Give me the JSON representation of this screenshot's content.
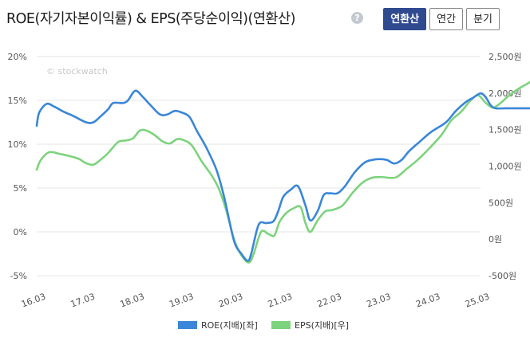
{
  "header": {
    "title": "ROE(자기자본이익률) & EPS(주당순이익)(연환산)",
    "help_icon": "?",
    "buttons": [
      {
        "label": "연환산",
        "active": true
      },
      {
        "label": "연간",
        "active": false
      },
      {
        "label": "분기",
        "active": false
      }
    ]
  },
  "chart_data": {
    "type": "line",
    "watermark": "© stockwatch",
    "x_labels": [
      "16.03",
      "17.03",
      "18.03",
      "19.03",
      "20.03",
      "21.03",
      "22.03",
      "23.03",
      "24.03",
      "25.03"
    ],
    "y_left": {
      "ticks": [
        20,
        15,
        10,
        5,
        0,
        -5
      ],
      "tick_labels": [
        "20%",
        "15%",
        "10%",
        "5%",
        "0%",
        "-5%"
      ],
      "range": [
        -5,
        20
      ]
    },
    "y_right": {
      "ticks": [
        2500,
        2000,
        1500,
        1000,
        500,
        0,
        -500
      ],
      "tick_labels": [
        "2,500원",
        "2,000원",
        "1,500원",
        "1,000원",
        "500원",
        "0원",
        "-500원"
      ],
      "range": [
        -500,
        2500
      ]
    },
    "colors": {
      "roe": "#3a86d8",
      "eps": "#7dd37d",
      "grid": "#e6e6e6"
    },
    "series": [
      {
        "name": "ROE(지배)[좌]",
        "axis": "left",
        "points": [
          [
            0,
            12.1
          ],
          [
            0.05,
            13.6
          ],
          [
            0.2,
            14.6
          ],
          [
            0.35,
            14.3
          ],
          [
            0.55,
            13.7
          ],
          [
            0.75,
            13.2
          ],
          [
            1.0,
            12.5
          ],
          [
            1.15,
            12.5
          ],
          [
            1.3,
            13.2
          ],
          [
            1.45,
            14.0
          ],
          [
            1.55,
            14.7
          ],
          [
            1.75,
            14.7
          ],
          [
            1.85,
            15.0
          ],
          [
            2.0,
            16.1
          ],
          [
            2.15,
            15.4
          ],
          [
            2.3,
            14.5
          ],
          [
            2.5,
            13.4
          ],
          [
            2.65,
            13.4
          ],
          [
            2.8,
            13.8
          ],
          [
            2.95,
            13.6
          ],
          [
            3.1,
            13.1
          ],
          [
            3.25,
            11.5
          ],
          [
            3.45,
            9.5
          ],
          [
            3.65,
            7.0
          ],
          [
            3.8,
            4.0
          ],
          [
            4.0,
            -1.0
          ],
          [
            4.15,
            -2.5
          ],
          [
            4.28,
            -3.3
          ],
          [
            4.35,
            -2.5
          ],
          [
            4.5,
            0.8
          ],
          [
            4.65,
            1.0
          ],
          [
            4.8,
            1.2
          ],
          [
            4.9,
            2.4
          ],
          [
            5.0,
            4.0
          ],
          [
            5.15,
            4.8
          ],
          [
            5.3,
            5.2
          ],
          [
            5.45,
            3.0
          ],
          [
            5.55,
            1.3
          ],
          [
            5.7,
            2.4
          ],
          [
            5.82,
            4.2
          ],
          [
            5.95,
            4.4
          ],
          [
            6.1,
            4.4
          ],
          [
            6.25,
            5.2
          ],
          [
            6.45,
            6.8
          ],
          [
            6.65,
            7.9
          ],
          [
            6.8,
            8.2
          ],
          [
            6.95,
            8.3
          ],
          [
            7.1,
            8.2
          ],
          [
            7.25,
            7.8
          ],
          [
            7.4,
            8.2
          ],
          [
            7.55,
            9.2
          ],
          [
            7.75,
            10.2
          ],
          [
            8.0,
            11.4
          ],
          [
            8.3,
            12.5
          ],
          [
            8.5,
            13.8
          ],
          [
            8.7,
            14.8
          ],
          [
            8.85,
            15.3
          ],
          [
            9.0,
            15.8
          ],
          [
            9.1,
            15.4
          ],
          [
            9.2,
            14.5
          ],
          [
            9.3,
            14.1
          ],
          [
            9.5,
            14.1
          ],
          [
            10.0,
            14.1
          ]
        ]
      },
      {
        "name": "EPS(지배)[우]",
        "axis": "right",
        "points": [
          [
            0,
            950
          ],
          [
            0.08,
            1080
          ],
          [
            0.25,
            1190
          ],
          [
            0.45,
            1170
          ],
          [
            0.65,
            1140
          ],
          [
            0.85,
            1100
          ],
          [
            1.0,
            1040
          ],
          [
            1.15,
            1020
          ],
          [
            1.3,
            1090
          ],
          [
            1.45,
            1180
          ],
          [
            1.65,
            1330
          ],
          [
            1.8,
            1350
          ],
          [
            1.95,
            1380
          ],
          [
            2.1,
            1490
          ],
          [
            2.25,
            1480
          ],
          [
            2.4,
            1420
          ],
          [
            2.55,
            1340
          ],
          [
            2.7,
            1310
          ],
          [
            2.85,
            1370
          ],
          [
            3.0,
            1350
          ],
          [
            3.15,
            1280
          ],
          [
            3.35,
            1060
          ],
          [
            3.55,
            870
          ],
          [
            3.7,
            680
          ],
          [
            3.85,
            380
          ],
          [
            4.0,
            0
          ],
          [
            4.15,
            -220
          ],
          [
            4.3,
            -320
          ],
          [
            4.4,
            -200
          ],
          [
            4.55,
            100
          ],
          [
            4.7,
            70
          ],
          [
            4.82,
            50
          ],
          [
            4.92,
            230
          ],
          [
            5.05,
            350
          ],
          [
            5.2,
            420
          ],
          [
            5.35,
            440
          ],
          [
            5.45,
            220
          ],
          [
            5.55,
            100
          ],
          [
            5.7,
            260
          ],
          [
            5.85,
            380
          ],
          [
            6.0,
            400
          ],
          [
            6.2,
            460
          ],
          [
            6.4,
            630
          ],
          [
            6.6,
            770
          ],
          [
            6.8,
            840
          ],
          [
            7.0,
            850
          ],
          [
            7.15,
            840
          ],
          [
            7.3,
            850
          ],
          [
            7.5,
            960
          ],
          [
            7.7,
            1070
          ],
          [
            7.9,
            1200
          ],
          [
            8.2,
            1420
          ],
          [
            8.4,
            1620
          ],
          [
            8.6,
            1740
          ],
          [
            8.8,
            1900
          ],
          [
            8.95,
            1970
          ],
          [
            9.1,
            1870
          ],
          [
            9.25,
            1800
          ],
          [
            9.4,
            1860
          ],
          [
            9.55,
            1950
          ],
          [
            9.75,
            2050
          ],
          [
            10.0,
            2150
          ],
          [
            10.2,
            2250
          ]
        ]
      }
    ],
    "legend": [
      "ROE(지배)[좌]",
      "EPS(지배)[우]"
    ]
  }
}
